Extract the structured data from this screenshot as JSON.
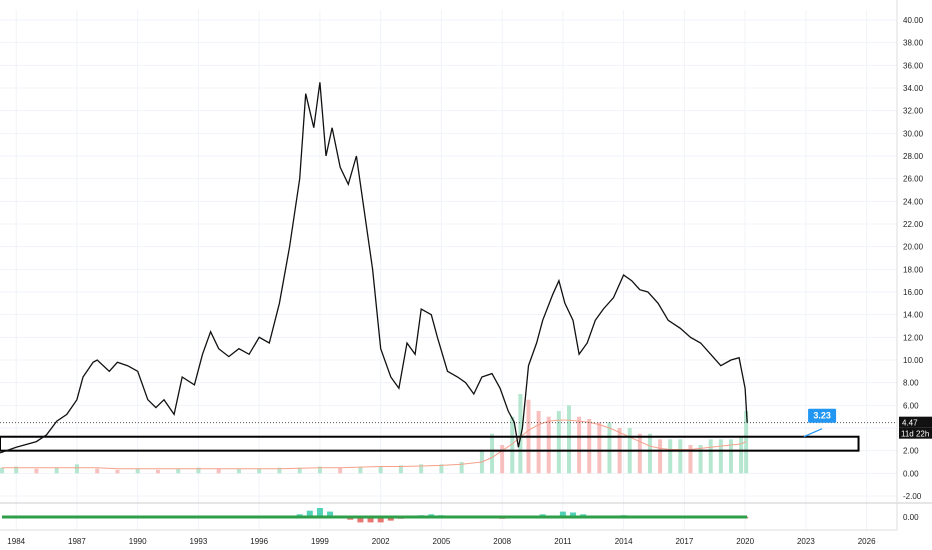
{
  "colors": {
    "price_line": "#111111",
    "grid": "#f0f3f8",
    "volume_up": "#a8e2c8",
    "volume_down": "#f7b4b4",
    "volume_ma": "#f6a08a",
    "oscillator_base": "#2e9e4a",
    "oscillator_hist_up": "#26c6a5",
    "oscillator_hist_down": "#e5534b",
    "callout_blue": "#2196f3",
    "price_label_bg": "#111111",
    "text": "#222222"
  },
  "price_label": {
    "value": "4.47",
    "countdown": "11d 22h"
  },
  "annotation": {
    "text": "3.23"
  },
  "oscillator_axis_label": "0.00",
  "chart_data": {
    "type": "line",
    "title": "",
    "xlabel": "",
    "ylabel": "",
    "x_ticks": [
      "1984",
      "1987",
      "1990",
      "1993",
      "1996",
      "1999",
      "2002",
      "2005",
      "2008",
      "2011",
      "2014",
      "2017",
      "2020",
      "2023",
      "2026"
    ],
    "y_ticks": [
      "40.00",
      "38.00",
      "36.00",
      "34.00",
      "32.00",
      "30.00",
      "28.00",
      "26.00",
      "24.00",
      "22.00",
      "20.00",
      "18.00",
      "16.00",
      "14.00",
      "12.00",
      "10.00",
      "8.00",
      "6.00",
      "4.00",
      "2.00",
      "0.00",
      "-2.00"
    ],
    "ylim": [
      -2,
      40
    ],
    "xlim": [
      1983.2,
      2027.5
    ],
    "last_price": 4.47,
    "support_zone": [
      2.0,
      3.23
    ],
    "grid": true,
    "series": [
      {
        "x": [
          1983.2,
          1984.0,
          1985.0,
          1985.5,
          1986.0,
          1986.5,
          1987.0,
          1987.3,
          1987.8,
          1988.0,
          1988.6,
          1989.0,
          1989.5,
          1990.0,
          1990.5,
          1990.9,
          1991.3,
          1991.8,
          1992.2,
          1992.8,
          1993.2,
          1993.6,
          1994.0,
          1994.5,
          1995.0,
          1995.5,
          1996.0,
          1996.5,
          1997.0,
          1997.5,
          1998.0,
          1998.3,
          1998.7,
          1999.0,
          1999.3,
          1999.6,
          2000.0,
          2000.4,
          2000.8,
          2001.2,
          2001.6,
          2002.0,
          2002.5,
          2002.9,
          2003.3,
          2003.7,
          2004.0,
          2004.5,
          2004.8,
          2005.3,
          2005.8,
          2006.2,
          2006.6,
          2007.0,
          2007.5,
          2007.9,
          2008.3,
          2008.6,
          2008.8,
          2009.0,
          2009.3,
          2009.7,
          2010.0,
          2010.5,
          2010.8,
          2011.1,
          2011.5,
          2011.8,
          2012.2,
          2012.6,
          2013.0,
          2013.5,
          2014.0,
          2014.4,
          2014.8,
          2015.2,
          2015.7,
          2016.2,
          2016.8,
          2017.3,
          2017.8,
          2018.3,
          2018.8,
          2019.3,
          2019.7,
          2020.0,
          2020.1
        ],
        "values": [
          1.8,
          2.3,
          2.8,
          3.4,
          4.6,
          5.2,
          6.5,
          8.5,
          9.8,
          10.0,
          9.0,
          9.8,
          9.5,
          9.0,
          6.5,
          5.8,
          6.5,
          5.2,
          8.5,
          7.8,
          10.5,
          12.5,
          11.0,
          10.3,
          11.0,
          10.5,
          12.0,
          11.5,
          15.0,
          20.0,
          26.0,
          33.5,
          30.5,
          34.5,
          28.0,
          30.5,
          27.0,
          25.5,
          28.0,
          23.0,
          18.0,
          11.0,
          8.5,
          7.5,
          11.5,
          10.5,
          14.5,
          14.0,
          12.0,
          9.0,
          8.5,
          8.0,
          7.0,
          8.5,
          8.8,
          7.5,
          5.5,
          4.5,
          2.3,
          4.0,
          9.5,
          11.5,
          13.5,
          15.8,
          17.0,
          15.0,
          13.5,
          10.5,
          11.5,
          13.5,
          14.5,
          15.5,
          17.5,
          17.0,
          16.2,
          16.0,
          15.0,
          13.5,
          12.8,
          12.0,
          11.5,
          10.5,
          9.5,
          10.0,
          10.2,
          7.5,
          4.47
        ]
      }
    ],
    "volume": {
      "x": [
        1983.3,
        1984.0,
        1985.0,
        1986.0,
        1987.0,
        1988.0,
        1989.0,
        1990.0,
        1991.0,
        1992.0,
        1993.0,
        1994.0,
        1995.0,
        1996.0,
        1997.0,
        1998.0,
        1999.0,
        2000.0,
        2001.0,
        2002.0,
        2003.0,
        2004.0,
        2005.0,
        2006.0,
        2007.0,
        2007.5,
        2008.0,
        2008.5,
        2008.9,
        2009.3,
        2009.8,
        2010.3,
        2010.8,
        2011.3,
        2011.8,
        2012.3,
        2012.8,
        2013.3,
        2013.8,
        2014.3,
        2014.8,
        2015.3,
        2015.8,
        2016.3,
        2016.8,
        2017.3,
        2017.8,
        2018.3,
        2018.8,
        2019.3,
        2019.8,
        2020.05
      ],
      "values": [
        0.5,
        0.6,
        0.4,
        0.5,
        0.8,
        0.4,
        0.3,
        0.4,
        0.3,
        0.4,
        0.5,
        0.4,
        0.4,
        0.4,
        0.5,
        0.5,
        0.6,
        0.5,
        0.6,
        0.6,
        0.7,
        0.8,
        0.8,
        1.0,
        2.0,
        3.5,
        2.5,
        5.0,
        7.0,
        6.5,
        5.5,
        5.0,
        5.5,
        6.0,
        5.0,
        4.8,
        4.5,
        4.5,
        4.0,
        4.0,
        3.5,
        3.5,
        3.0,
        3.0,
        3.0,
        2.5,
        2.5,
        3.0,
        3.0,
        3.0,
        3.2,
        5.5
      ],
      "ma": [
        0.5,
        0.5,
        0.5,
        0.5,
        0.5,
        0.5,
        0.4,
        0.4,
        0.4,
        0.4,
        0.4,
        0.4,
        0.4,
        0.4,
        0.4,
        0.45,
        0.5,
        0.5,
        0.55,
        0.6,
        0.6,
        0.65,
        0.7,
        0.8,
        1.0,
        1.4,
        2.0,
        2.6,
        3.2,
        3.8,
        4.3,
        4.6,
        4.7,
        4.7,
        4.6,
        4.5,
        4.3,
        4.0,
        3.6,
        3.2,
        2.8,
        2.4,
        2.2,
        2.1,
        2.1,
        2.1,
        2.2,
        2.3,
        2.4,
        2.5,
        2.6,
        2.8
      ]
    },
    "oscillator": {
      "x": [
        1983.3,
        1985.0,
        1987.0,
        1989.0,
        1991.0,
        1993.0,
        1995.0,
        1997.0,
        1997.5,
        1998.0,
        1998.5,
        1999.0,
        1999.5,
        2000.0,
        2000.5,
        2001.0,
        2001.5,
        2002.0,
        2002.5,
        2003.0,
        2003.5,
        2004.0,
        2004.5,
        2005.0,
        2005.5,
        2006.0,
        2007.0,
        2008.0,
        2008.5,
        2009.0,
        2010.0,
        2011.0,
        2011.5,
        2012.0,
        2012.5,
        2013.0,
        2014.0,
        2015.0,
        2016.0,
        2017.0,
        2018.0,
        2019.0,
        2020.0
      ],
      "values": [
        0.0,
        0.0,
        0.1,
        0.0,
        -0.1,
        0.1,
        0.0,
        0.05,
        0.15,
        0.3,
        0.7,
        1.0,
        0.6,
        0.0,
        -0.3,
        -0.6,
        -0.6,
        -0.6,
        -0.4,
        -0.2,
        0.0,
        0.2,
        0.3,
        0.2,
        0.0,
        0.0,
        -0.1,
        -0.2,
        -0.15,
        0.0,
        0.3,
        0.6,
        0.5,
        0.3,
        0.0,
        0.1,
        0.2,
        0.1,
        0.0,
        0.1,
        0.0,
        -0.1,
        -0.15
      ]
    }
  }
}
